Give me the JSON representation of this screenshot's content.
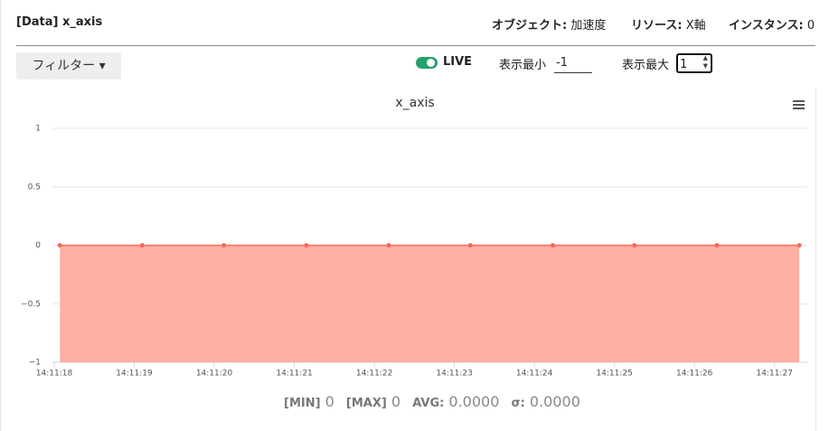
{
  "header": {
    "title": "[Data] x_axis",
    "object_label": "オブジェクト:",
    "object_value": "加速度",
    "resource_label": "リソース:",
    "resource_value": "X軸",
    "instance_label": "インスタンス:",
    "instance_value": "0"
  },
  "controls": {
    "filter": "フィルター",
    "live": "LIVE",
    "min_label": "表示最小",
    "min_value": "-1",
    "max_label": "表示最大",
    "max_value": "1"
  },
  "chart_data": {
    "type": "area",
    "title": "x_axis",
    "x": [
      18.07,
      19.1,
      20.12,
      21.15,
      22.18,
      23.2,
      24.23,
      25.25,
      26.28,
      27.31
    ],
    "series": [
      {
        "name": "x_axis",
        "color": "#f06b5a",
        "fill": "#ffafa3",
        "values": [
          0,
          0,
          0,
          0,
          0,
          0,
          0,
          0,
          0,
          0
        ]
      }
    ],
    "xlim": [
      18,
      27.41
    ],
    "xticks": [
      {
        "value": 18,
        "label": "14:11:18"
      },
      {
        "value": 19,
        "label": "14:11:19"
      },
      {
        "value": 20,
        "label": "14:11:20"
      },
      {
        "value": 21,
        "label": "14:11:21"
      },
      {
        "value": 22,
        "label": "14:11:22"
      },
      {
        "value": 23,
        "label": "14:11:23"
      },
      {
        "value": 24,
        "label": "14:11:24"
      },
      {
        "value": 25,
        "label": "14:11:25"
      },
      {
        "value": 26,
        "label": "14:11:26"
      },
      {
        "value": 27,
        "label": "14:11:27"
      }
    ],
    "ylim": [
      -1,
      1
    ],
    "yticks": [
      {
        "value": -1,
        "label": "−1"
      },
      {
        "value": -0.5,
        "label": "−0.5"
      },
      0,
      0.5,
      1
    ],
    "grid": true
  },
  "stats": {
    "min_label": "[MIN]",
    "min_value": "0",
    "max_label": "[MAX]",
    "max_value": "0",
    "avg_label": "AVG:",
    "avg_value": "0.0000",
    "sigma_label": "σ:",
    "sigma_value": "0.0000"
  }
}
